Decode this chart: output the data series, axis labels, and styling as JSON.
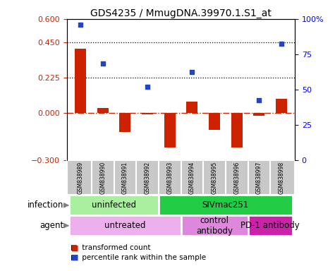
{
  "title": "GDS4235 / MmugDNA.39970.1.S1_at",
  "samples": [
    "GSM838989",
    "GSM838990",
    "GSM838991",
    "GSM838992",
    "GSM838993",
    "GSM838994",
    "GSM838995",
    "GSM838996",
    "GSM838997",
    "GSM838998"
  ],
  "red_values": [
    0.41,
    0.03,
    -0.12,
    -0.01,
    -0.22,
    0.07,
    -0.11,
    -0.22,
    -0.02,
    0.09
  ],
  "blue_values": [
    0.565,
    0.315,
    null,
    0.165,
    null,
    0.26,
    null,
    null,
    0.08,
    0.44
  ],
  "ylim_left": [
    -0.3,
    0.6
  ],
  "ylim_right": [
    0,
    100
  ],
  "yticks_left": [
    -0.3,
    0.0,
    0.225,
    0.45,
    0.6
  ],
  "yticks_right": [
    0,
    25,
    50,
    75,
    100
  ],
  "hlines": [
    0.225,
    0.45
  ],
  "infection_groups": [
    {
      "label": "uninfected",
      "start": 0,
      "end": 4,
      "color": "#AAEEA0"
    },
    {
      "label": "SIVmac251",
      "start": 4,
      "end": 10,
      "color": "#22CC44"
    }
  ],
  "agent_groups": [
    {
      "label": "untreated",
      "start": 0,
      "end": 5,
      "color": "#EDB0ED"
    },
    {
      "label": "control\nantibody",
      "start": 5,
      "end": 8,
      "color": "#DD88DD"
    },
    {
      "label": "PD-1 antibody",
      "start": 8,
      "end": 10,
      "color": "#CC22AA"
    }
  ],
  "bar_width": 0.5,
  "red_color": "#CC2200",
  "blue_color": "#2244CC",
  "zero_line_color": "#CC2200",
  "title_fontsize": 10,
  "sample_bg": "#C8C8C8",
  "sample_divider": "#FFFFFF"
}
